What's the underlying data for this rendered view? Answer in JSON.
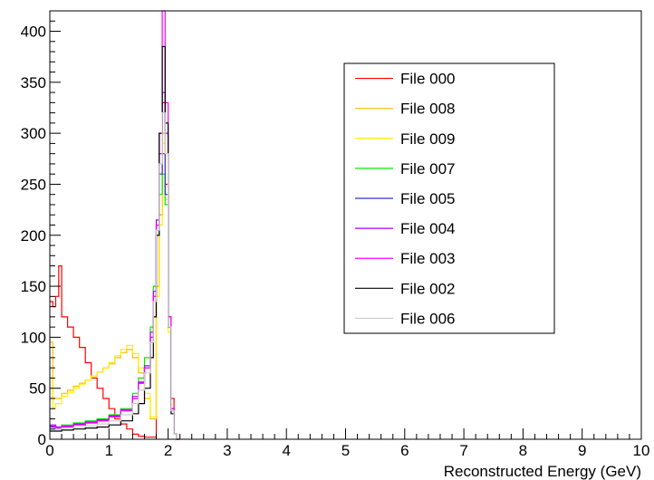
{
  "chart_data": {
    "type": "line",
    "title": "",
    "xlabel": "Reconstructed Energy (GeV)",
    "ylabel": "",
    "xlim": [
      0,
      10
    ],
    "ylim": [
      0,
      420
    ],
    "x_ticks": [
      0,
      1,
      2,
      3,
      4,
      5,
      6,
      7,
      8,
      9,
      10
    ],
    "y_ticks": [
      0,
      50,
      100,
      150,
      200,
      250,
      300,
      350,
      400
    ],
    "grid": false,
    "legend_position": "top-right",
    "style": "step-histogram",
    "series": [
      {
        "name": "File 000",
        "color": "#ff0000",
        "x": [
          0,
          0.05,
          0.1,
          0.15,
          0.2,
          0.3,
          0.4,
          0.5,
          0.6,
          0.7,
          0.8,
          0.9,
          1.0,
          1.1,
          1.2,
          1.3,
          1.4,
          1.5,
          1.6,
          1.7,
          1.8,
          1.85,
          1.9,
          1.95,
          2.0,
          2.05,
          2.1,
          2.15
        ],
        "values": [
          135,
          130,
          140,
          170,
          120,
          110,
          100,
          90,
          75,
          60,
          50,
          40,
          30,
          20,
          15,
          10,
          5,
          3,
          2,
          2,
          150,
          220,
          330,
          250,
          120,
          40,
          5,
          0
        ]
      },
      {
        "name": "File 008",
        "color": "#ffbb00",
        "x": [
          0,
          0.05,
          0.1,
          0.2,
          0.3,
          0.4,
          0.5,
          0.6,
          0.7,
          0.8,
          0.9,
          1.0,
          1.1,
          1.2,
          1.3,
          1.4,
          1.5,
          1.6,
          1.7,
          1.8,
          1.85,
          1.9,
          1.95,
          2.0,
          2.05,
          2.1,
          2.15
        ],
        "values": [
          95,
          40,
          40,
          45,
          48,
          52,
          55,
          58,
          62,
          66,
          70,
          74,
          80,
          85,
          88,
          80,
          65,
          40,
          20,
          150,
          220,
          300,
          240,
          110,
          30,
          5,
          0
        ]
      },
      {
        "name": "File 009",
        "color": "#ffee00",
        "x": [
          0,
          0.05,
          0.1,
          0.2,
          0.3,
          0.4,
          0.5,
          0.6,
          0.7,
          0.8,
          0.9,
          1.0,
          1.1,
          1.2,
          1.3,
          1.4,
          1.5,
          1.6,
          1.7,
          1.8,
          1.85,
          1.9,
          1.95,
          2.0,
          2.05,
          2.1,
          2.15
        ],
        "values": [
          60,
          30,
          35,
          42,
          46,
          50,
          54,
          58,
          62,
          66,
          70,
          75,
          82,
          88,
          92,
          84,
          70,
          45,
          22,
          140,
          210,
          290,
          235,
          105,
          28,
          5,
          0
        ]
      },
      {
        "name": "File 007",
        "color": "#00ee00",
        "x": [
          0,
          0.1,
          0.2,
          0.4,
          0.6,
          0.8,
          1.0,
          1.2,
          1.4,
          1.5,
          1.6,
          1.7,
          1.75,
          1.8,
          1.85,
          1.9,
          1.95,
          2.0,
          2.05,
          2.1,
          2.15
        ],
        "values": [
          10,
          12,
          14,
          16,
          18,
          20,
          24,
          30,
          45,
          60,
          80,
          110,
          150,
          200,
          240,
          260,
          230,
          110,
          30,
          5,
          0
        ]
      },
      {
        "name": "File 005",
        "color": "#3333cc",
        "x": [
          0,
          0.1,
          0.2,
          0.4,
          0.6,
          0.8,
          1.0,
          1.2,
          1.4,
          1.5,
          1.6,
          1.7,
          1.75,
          1.8,
          1.85,
          1.9,
          1.95,
          2.0,
          2.05,
          2.1,
          2.15
        ],
        "values": [
          12,
          10,
          12,
          14,
          16,
          18,
          22,
          28,
          40,
          55,
          70,
          100,
          140,
          210,
          260,
          280,
          240,
          110,
          28,
          5,
          0
        ]
      },
      {
        "name": "File 004",
        "color": "#aa00ff",
        "x": [
          0,
          0.1,
          0.2,
          0.4,
          0.6,
          0.8,
          1.0,
          1.2,
          1.4,
          1.5,
          1.6,
          1.7,
          1.75,
          1.8,
          1.85,
          1.9,
          1.95,
          2.0,
          2.05,
          2.1,
          2.15
        ],
        "values": [
          14,
          12,
          13,
          15,
          17,
          19,
          23,
          29,
          42,
          56,
          72,
          105,
          145,
          215,
          280,
          340,
          300,
          120,
          30,
          5,
          0
        ]
      },
      {
        "name": "File 003",
        "color": "#ff00ff",
        "x": [
          0,
          0.1,
          0.2,
          0.4,
          0.6,
          0.8,
          1.0,
          1.2,
          1.4,
          1.5,
          1.6,
          1.7,
          1.75,
          1.8,
          1.85,
          1.9,
          1.95,
          2.0,
          2.05,
          2.1,
          2.15
        ],
        "values": [
          13,
          11,
          12,
          14,
          16,
          18,
          22,
          28,
          40,
          55,
          70,
          100,
          140,
          210,
          300,
          420,
          330,
          120,
          30,
          5,
          0
        ]
      },
      {
        "name": "File 002",
        "color": "#000000",
        "x": [
          0,
          0.1,
          0.2,
          0.4,
          0.6,
          0.8,
          1.0,
          1.2,
          1.4,
          1.5,
          1.6,
          1.7,
          1.75,
          1.8,
          1.85,
          1.9,
          1.95,
          2.0,
          2.05,
          2.1,
          2.15
        ],
        "values": [
          8,
          8,
          9,
          10,
          11,
          12,
          14,
          18,
          25,
          35,
          50,
          80,
          120,
          200,
          300,
          385,
          310,
          110,
          25,
          5,
          0
        ]
      },
      {
        "name": "File 006",
        "color": "#cccccc",
        "x": [
          0,
          0.1,
          0.2,
          0.4,
          0.6,
          0.8,
          1.0,
          1.2,
          1.4,
          1.5,
          1.6,
          1.7,
          1.75,
          1.8,
          1.85,
          1.9,
          1.95,
          2.0,
          2.05,
          2.1,
          2.15
        ],
        "values": [
          10,
          10,
          11,
          12,
          13,
          15,
          18,
          24,
          35,
          48,
          65,
          95,
          135,
          205,
          270,
          320,
          280,
          110,
          28,
          5,
          0
        ]
      }
    ]
  }
}
